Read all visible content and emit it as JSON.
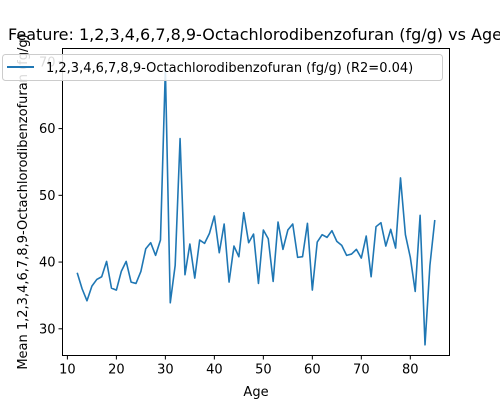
{
  "chart_data": {
    "type": "line",
    "title": "Feature: 1,2,3,4,6,7,8,9-Octachlorodibenzofuran (fg/g) vs Age",
    "xlabel": "Age",
    "ylabel": "Mean 1,2,3,4,6,7,8,9-Octachlorodibenzofuran (fg/g)",
    "xlim": [
      9,
      88
    ],
    "ylim": [
      26,
      72
    ],
    "xticks": [
      10,
      20,
      30,
      40,
      50,
      60,
      70,
      80
    ],
    "yticks": [
      30,
      40,
      50,
      60,
      70
    ],
    "grid": false,
    "legend_position": "top-left",
    "series": [
      {
        "name": "1,2,3,4,6,7,8,9-Octachlorodibenzofuran (fg/g) (R2=0.04)",
        "color": "#1f77b4",
        "x": [
          12,
          13,
          14,
          15,
          16,
          17,
          18,
          19,
          20,
          21,
          22,
          23,
          24,
          25,
          26,
          27,
          28,
          29,
          30,
          31,
          32,
          33,
          34,
          35,
          36,
          37,
          38,
          39,
          40,
          41,
          42,
          43,
          44,
          45,
          46,
          47,
          48,
          49,
          50,
          51,
          52,
          53,
          54,
          55,
          56,
          57,
          58,
          59,
          60,
          61,
          62,
          63,
          64,
          65,
          66,
          67,
          68,
          69,
          70,
          71,
          72,
          73,
          74,
          75,
          76,
          77,
          78,
          79,
          80,
          81,
          82,
          83,
          84,
          85
        ],
        "y": [
          38.4,
          36.0,
          34.2,
          36.4,
          37.4,
          37.8,
          40.1,
          36.1,
          35.8,
          38.6,
          40.1,
          37.0,
          36.8,
          38.6,
          42.0,
          42.9,
          41.0,
          43.3,
          69.0,
          33.9,
          39.5,
          58.5,
          38.1,
          42.7,
          37.6,
          43.3,
          42.8,
          44.3,
          46.9,
          41.4,
          45.7,
          37.0,
          42.4,
          40.8,
          47.4,
          42.9,
          44.2,
          36.8,
          44.8,
          43.5,
          37.1,
          46.0,
          41.9,
          44.8,
          45.7,
          40.7,
          40.8,
          45.8,
          35.8,
          43.0,
          44.1,
          43.7,
          44.7,
          43.1,
          42.5,
          41.0,
          41.2,
          41.9,
          40.6,
          43.9,
          37.8,
          45.3,
          45.9,
          42.4,
          44.9,
          42.1,
          52.6,
          44.1,
          40.7,
          35.6,
          47.0,
          27.6,
          39.5,
          46.3
        ]
      }
    ]
  }
}
